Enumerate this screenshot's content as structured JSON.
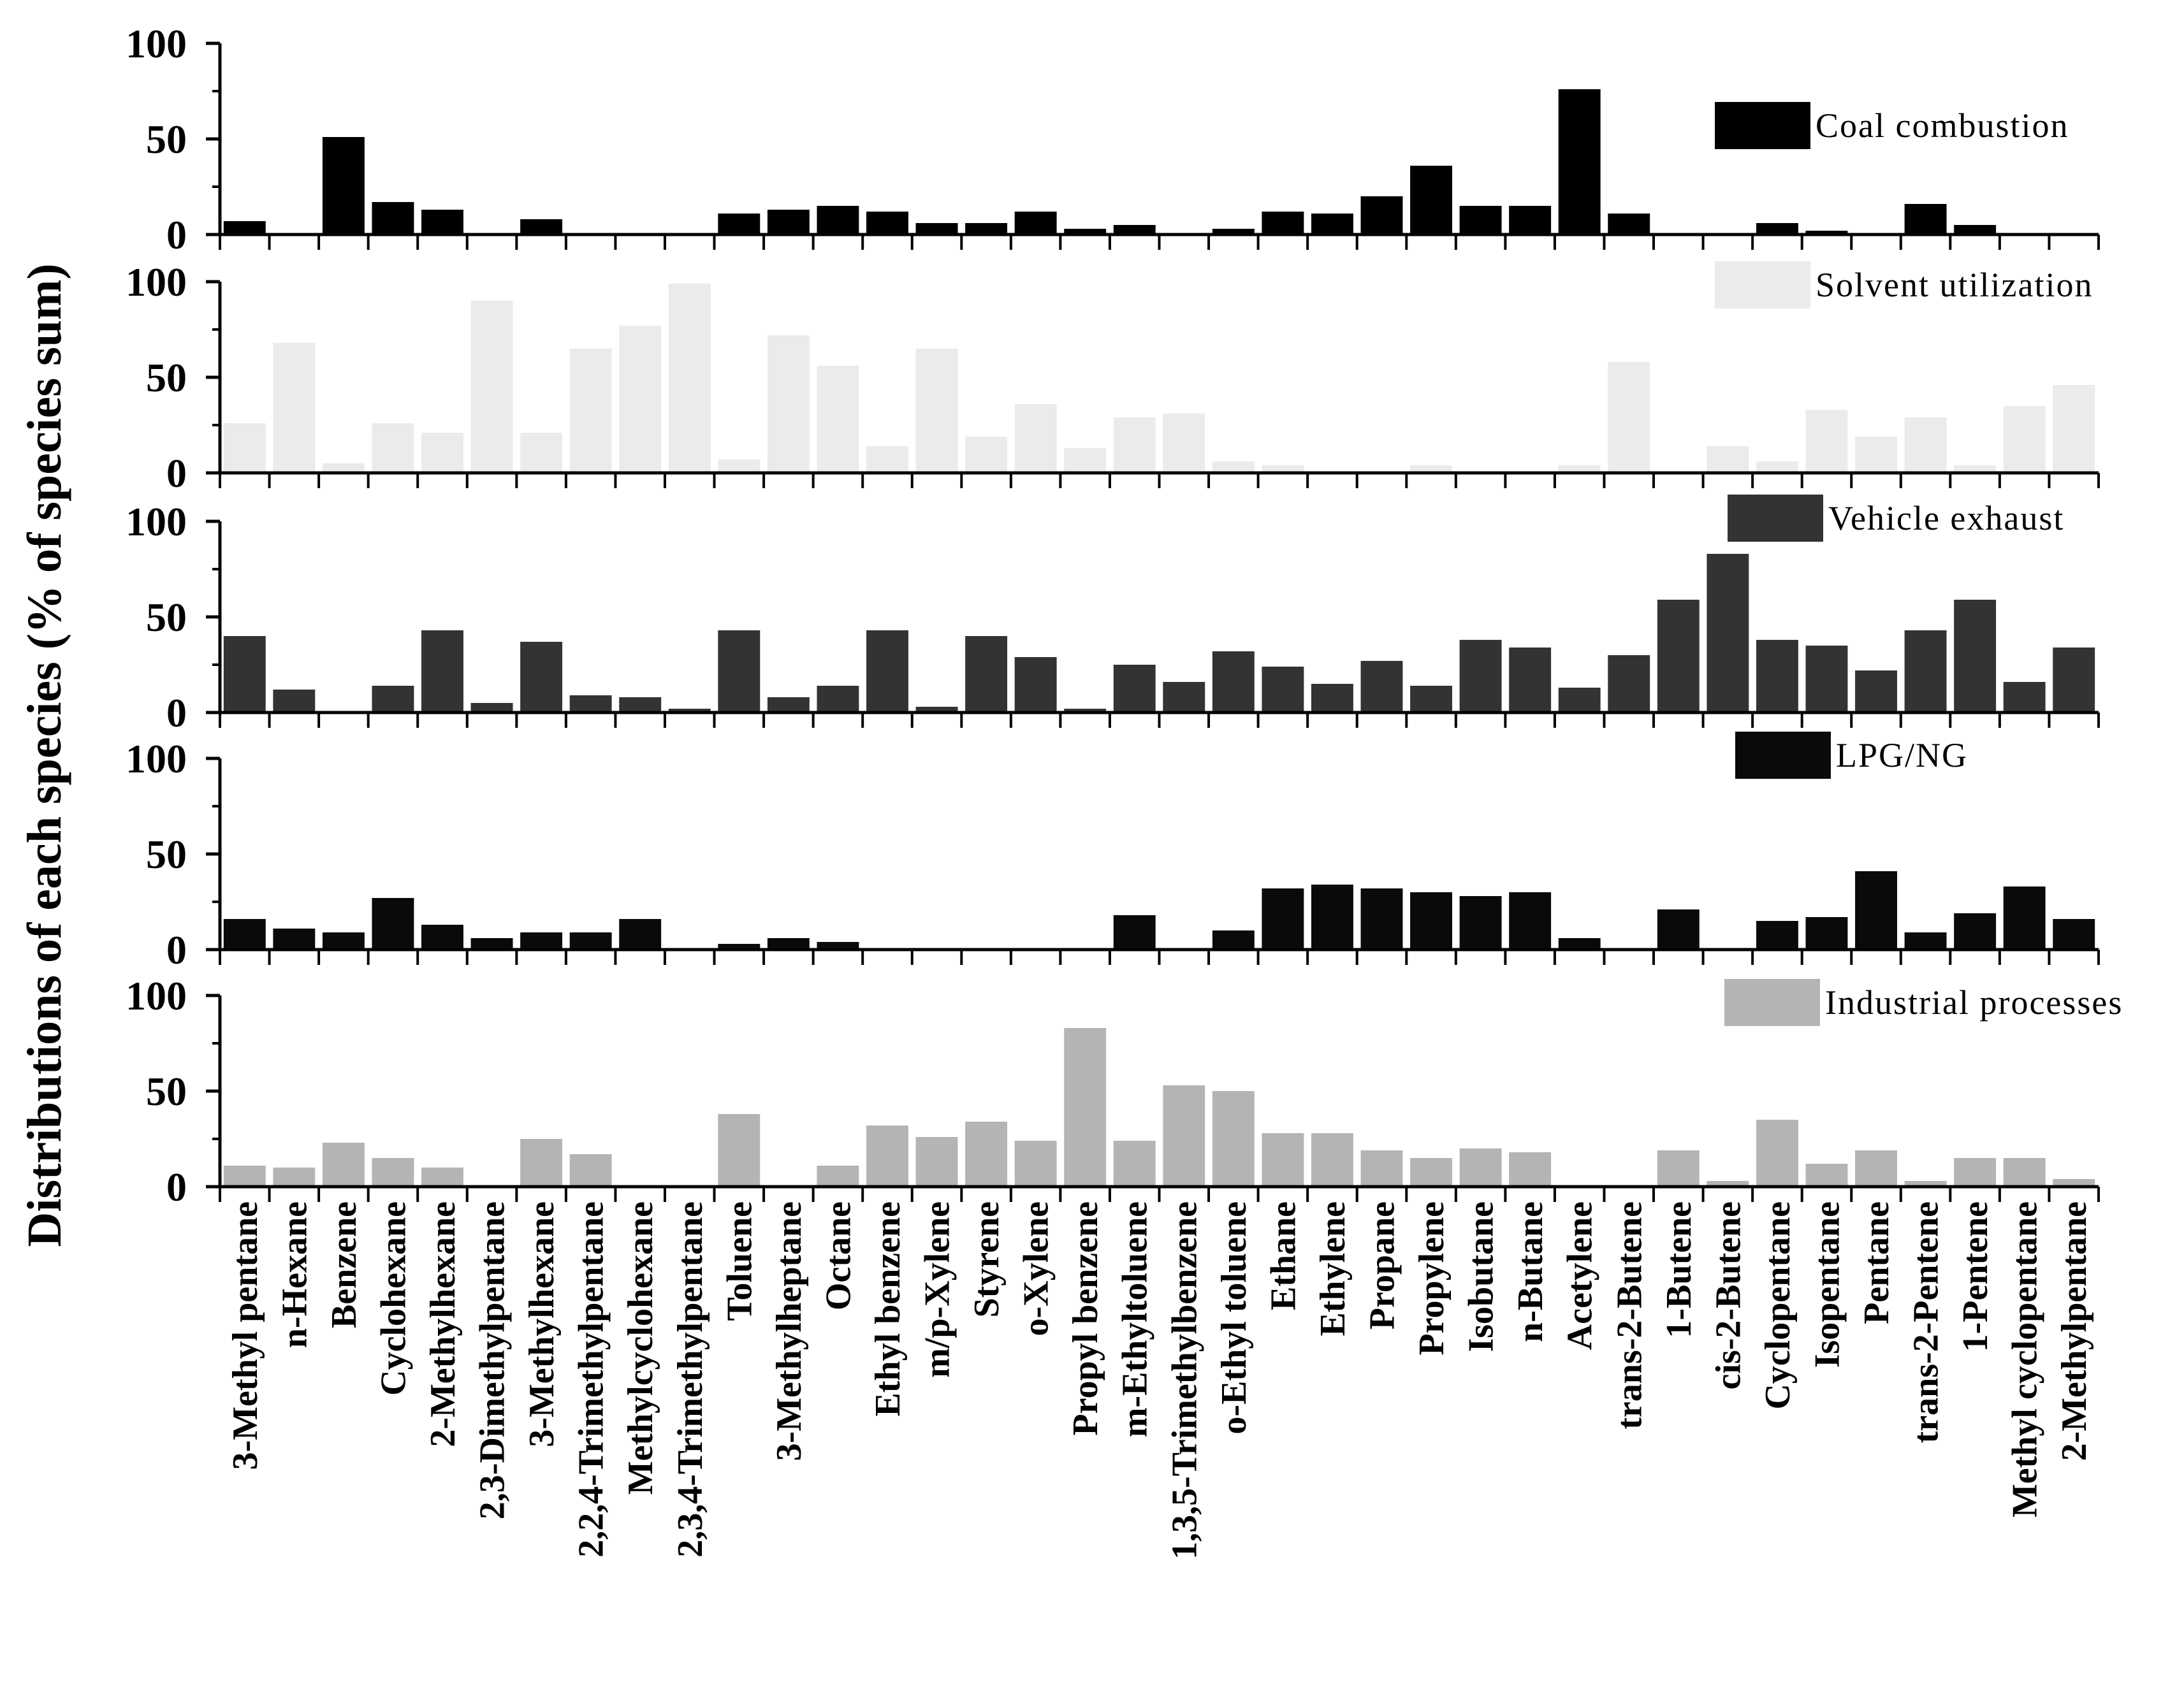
{
  "chart_data": {
    "type": "bar",
    "ylabel": "Distributions of each species (% of species sum)",
    "ylim": [
      0,
      100
    ],
    "yticks": [
      "0",
      "50",
      "100"
    ],
    "categories": [
      "3-Methyl pentane",
      "n-Hexane",
      "Benzene",
      "Cyclohexane",
      "2-Methylhexane",
      "2,3-Dimethylpentane",
      "3-Methylhexane",
      "2,2,4-Trimethylpentane",
      "Methylcyclohexane",
      "2,3,4-Trimethylpentane",
      "Toluene",
      "3-Methylheptane",
      "Octane",
      "Ethyl benzene",
      "m/p-Xylene",
      "Styrene",
      "o-Xylene",
      "Propyl benzene",
      "m-Ethyltoluene",
      "1,3,5-Trimethylbenzene",
      "o-Ethyl toluene",
      "Ethane",
      "Ethylene",
      "Propane",
      "Propylene",
      "Isobutane",
      "n-Butane",
      "Acetylene",
      "trans-2-Butene",
      "1-Butene",
      "cis-2-Butene",
      "Cyclopentane",
      "Isopentane",
      "Pentane",
      "trans-2-Pentene",
      "1-Pentene",
      "Methyl cyclopentane",
      "2-Methylpentane"
    ],
    "series": [
      {
        "name": "Coal combustion",
        "color": "#000000",
        "values": [
          7,
          0,
          51,
          17,
          13,
          0,
          8,
          0,
          0,
          0,
          11,
          13,
          15,
          12,
          6,
          6,
          12,
          3,
          5,
          0,
          3,
          12,
          11,
          20,
          36,
          15,
          15,
          76,
          11,
          0,
          0,
          6,
          2,
          0,
          16,
          5,
          0,
          0
        ]
      },
      {
        "name": "Solvent utilization",
        "color": "#ebebeb",
        "values": [
          26,
          68,
          5,
          26,
          21,
          90,
          21,
          65,
          77,
          99,
          7,
          72,
          56,
          14,
          65,
          19,
          36,
          13,
          29,
          31,
          6,
          4,
          0,
          0,
          4,
          0,
          0,
          4,
          58,
          0,
          14,
          6,
          33,
          19,
          29,
          4,
          35,
          46
        ]
      },
      {
        "name": "Vehicle exhaust",
        "color": "#333333",
        "values": [
          40,
          12,
          0,
          14,
          43,
          5,
          37,
          9,
          8,
          2,
          43,
          8,
          14,
          43,
          3,
          40,
          29,
          2,
          25,
          16,
          32,
          24,
          15,
          27,
          14,
          38,
          34,
          13,
          30,
          59,
          83,
          38,
          35,
          22,
          43,
          59,
          16,
          34
        ]
      },
      {
        "name": "LPG/NG",
        "color": "#0a0a0a",
        "values": [
          16,
          11,
          9,
          27,
          13,
          6,
          9,
          9,
          16,
          0,
          3,
          6,
          4,
          0,
          0,
          0,
          0,
          0,
          18,
          0,
          10,
          32,
          34,
          32,
          30,
          28,
          30,
          6,
          0,
          21,
          0,
          15,
          17,
          41,
          9,
          19,
          33,
          16
        ]
      },
      {
        "name": "Industrial processes",
        "color": "#b4b4b4",
        "values": [
          11,
          10,
          23,
          15,
          10,
          0,
          25,
          17,
          0,
          0,
          38,
          0,
          11,
          32,
          26,
          34,
          24,
          83,
          24,
          53,
          50,
          28,
          28,
          19,
          15,
          20,
          18,
          0,
          0,
          19,
          3,
          35,
          12,
          19,
          3,
          15,
          15,
          4
        ]
      }
    ]
  }
}
